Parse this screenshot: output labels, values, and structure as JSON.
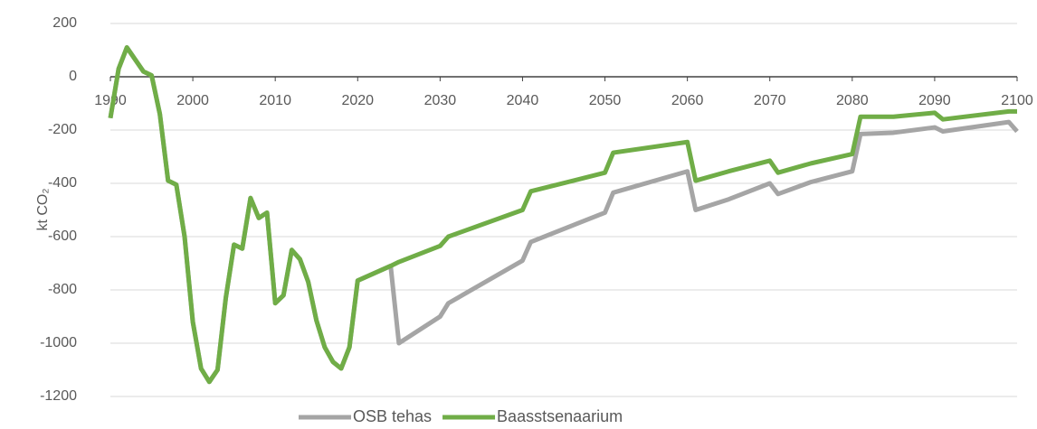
{
  "chart_data": {
    "type": "line",
    "y_label": "kt CO₂",
    "x": [
      1990,
      1991,
      1992,
      1993,
      1994,
      1995,
      1996,
      1997,
      1998,
      1999,
      2000,
      2001,
      2002,
      2003,
      2004,
      2005,
      2006,
      2007,
      2008,
      2009,
      2010,
      2011,
      2012,
      2013,
      2014,
      2015,
      2016,
      2017,
      2018,
      2019,
      2020,
      2024,
      2025,
      2030,
      2031,
      2040,
      2041,
      2050,
      2051,
      2060,
      2061,
      2065,
      2070,
      2071,
      2075,
      2080,
      2081,
      2085,
      2090,
      2091,
      2099,
      2100
    ],
    "series": [
      {
        "name": "OSB tehas",
        "color": "#a5a5a5",
        "values": [
          -155,
          30,
          110,
          65,
          20,
          5,
          -140,
          -390,
          -405,
          -600,
          -920,
          -1095,
          -1145,
          -1100,
          -830,
          -630,
          -645,
          -455,
          -530,
          -510,
          -850,
          -820,
          -650,
          -685,
          -770,
          -915,
          -1015,
          -1070,
          -1095,
          -1015,
          -765,
          -710,
          -1000,
          -900,
          -850,
          -690,
          -620,
          -510,
          -435,
          -355,
          -500,
          -460,
          -400,
          -440,
          -395,
          -355,
          -215,
          -210,
          -190,
          -205,
          -170,
          -205
        ]
      },
      {
        "name": "Baasstsenaarium",
        "color": "#70ad47",
        "values": [
          -155,
          30,
          110,
          65,
          20,
          5,
          -140,
          -390,
          -405,
          -600,
          -920,
          -1095,
          -1145,
          -1100,
          -830,
          -630,
          -645,
          -455,
          -530,
          -510,
          -850,
          -820,
          -650,
          -685,
          -770,
          -915,
          -1015,
          -1070,
          -1095,
          -1015,
          -765,
          -710,
          -695,
          -635,
          -600,
          -500,
          -430,
          -360,
          -285,
          -245,
          -390,
          -355,
          -315,
          -360,
          -325,
          -290,
          -150,
          -150,
          -135,
          -160,
          -130,
          -130
        ]
      }
    ],
    "xlim": [
      1990,
      2100
    ],
    "xticks": [
      1990,
      2000,
      2010,
      2020,
      2030,
      2040,
      2050,
      2060,
      2070,
      2080,
      2090,
      2100
    ],
    "ylim": [
      -1200,
      200
    ],
    "yticks": [
      -1200,
      -1000,
      -800,
      -600,
      -400,
      -200,
      0,
      200
    ],
    "grid": true,
    "legend": "bottom"
  }
}
